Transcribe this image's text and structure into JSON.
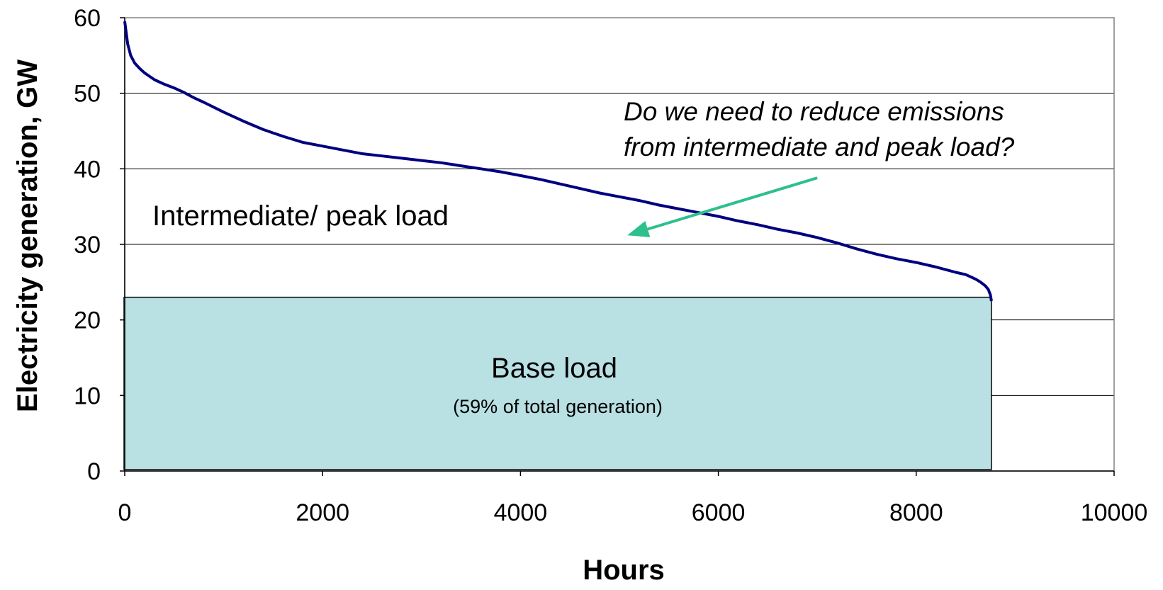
{
  "chart_data": {
    "type": "line",
    "xlabel": "Hours",
    "ylabel": "Electricity generation, GW",
    "xlim": [
      0,
      10000
    ],
    "ylim": [
      0,
      60
    ],
    "xticks": [
      "0",
      "2000",
      "4000",
      "6000",
      "8000",
      "10000"
    ],
    "yticks": [
      "0",
      "10",
      "20",
      "30",
      "40",
      "50",
      "60"
    ],
    "grid": "horizontal",
    "series": [
      {
        "color": "#000080",
        "x": [
          0,
          30,
          60,
          100,
          150,
          200,
          300,
          400,
          500,
          600,
          700,
          800,
          1000,
          1200,
          1400,
          1600,
          1800,
          2000,
          2200,
          2400,
          2600,
          2800,
          3000,
          3200,
          3400,
          3600,
          3800,
          4000,
          4200,
          4400,
          4600,
          4800,
          5000,
          5200,
          5400,
          5600,
          5800,
          6000,
          6200,
          6400,
          6600,
          6800,
          7000,
          7200,
          7400,
          7600,
          7800,
          8000,
          8200,
          8400,
          8500,
          8600,
          8650,
          8700,
          8730,
          8750,
          8760
        ],
        "values": [
          59.5,
          56.5,
          55.0,
          54.0,
          53.3,
          52.7,
          51.8,
          51.2,
          50.7,
          50.1,
          49.4,
          48.8,
          47.5,
          46.3,
          45.2,
          44.3,
          43.5,
          43.0,
          42.5,
          42.0,
          41.7,
          41.4,
          41.1,
          40.8,
          40.4,
          40.0,
          39.6,
          39.1,
          38.6,
          38.0,
          37.4,
          36.8,
          36.3,
          35.8,
          35.2,
          34.7,
          34.2,
          33.7,
          33.1,
          32.6,
          32.0,
          31.5,
          30.9,
          30.2,
          29.4,
          28.7,
          28.1,
          27.6,
          27.0,
          26.3,
          26.0,
          25.4,
          25.0,
          24.5,
          24.0,
          23.3,
          22.5
        ]
      }
    ],
    "base_block": {
      "x": [
        0,
        8760
      ],
      "y": [
        0,
        23
      ],
      "color": "#b9e0e3"
    },
    "annotations": {
      "intermediate": "Intermediate/ peak load",
      "base_title": "Base load",
      "base_sub": "(59% of total generation)",
      "question_line1": "Do we need to reduce emissions",
      "question_line2": "from intermediate and peak load?",
      "arrow_color": "#2dbf8c"
    }
  }
}
